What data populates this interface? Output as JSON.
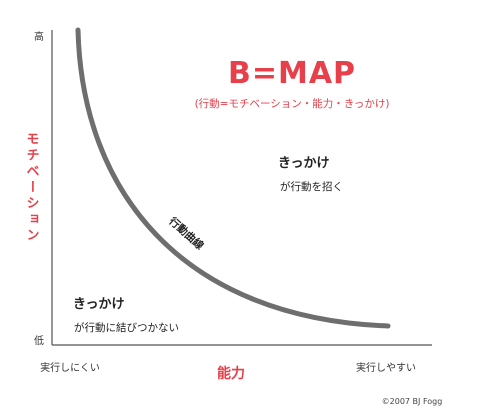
{
  "title": "B=MAP",
  "subtitle": "(行動=モチベーション・能力・きっかけ)",
  "y_axis": {
    "label": "モチベーション",
    "high": "高",
    "low": "低"
  },
  "x_axis": {
    "label": "能力",
    "left": "実行しにくい",
    "right": "実行しやすい"
  },
  "curve_label": "行動曲線",
  "upper_region": {
    "heading": "きっかけ",
    "text": "が行動を招く"
  },
  "lower_region": {
    "heading": "きっかけ",
    "text": "が行動に結びつかない"
  },
  "copyright": "©2007 BJ Fogg",
  "colors": {
    "accent": "#e8404a",
    "axis": "#555555",
    "curve": "#6e6e6e",
    "text": "#222222"
  }
}
